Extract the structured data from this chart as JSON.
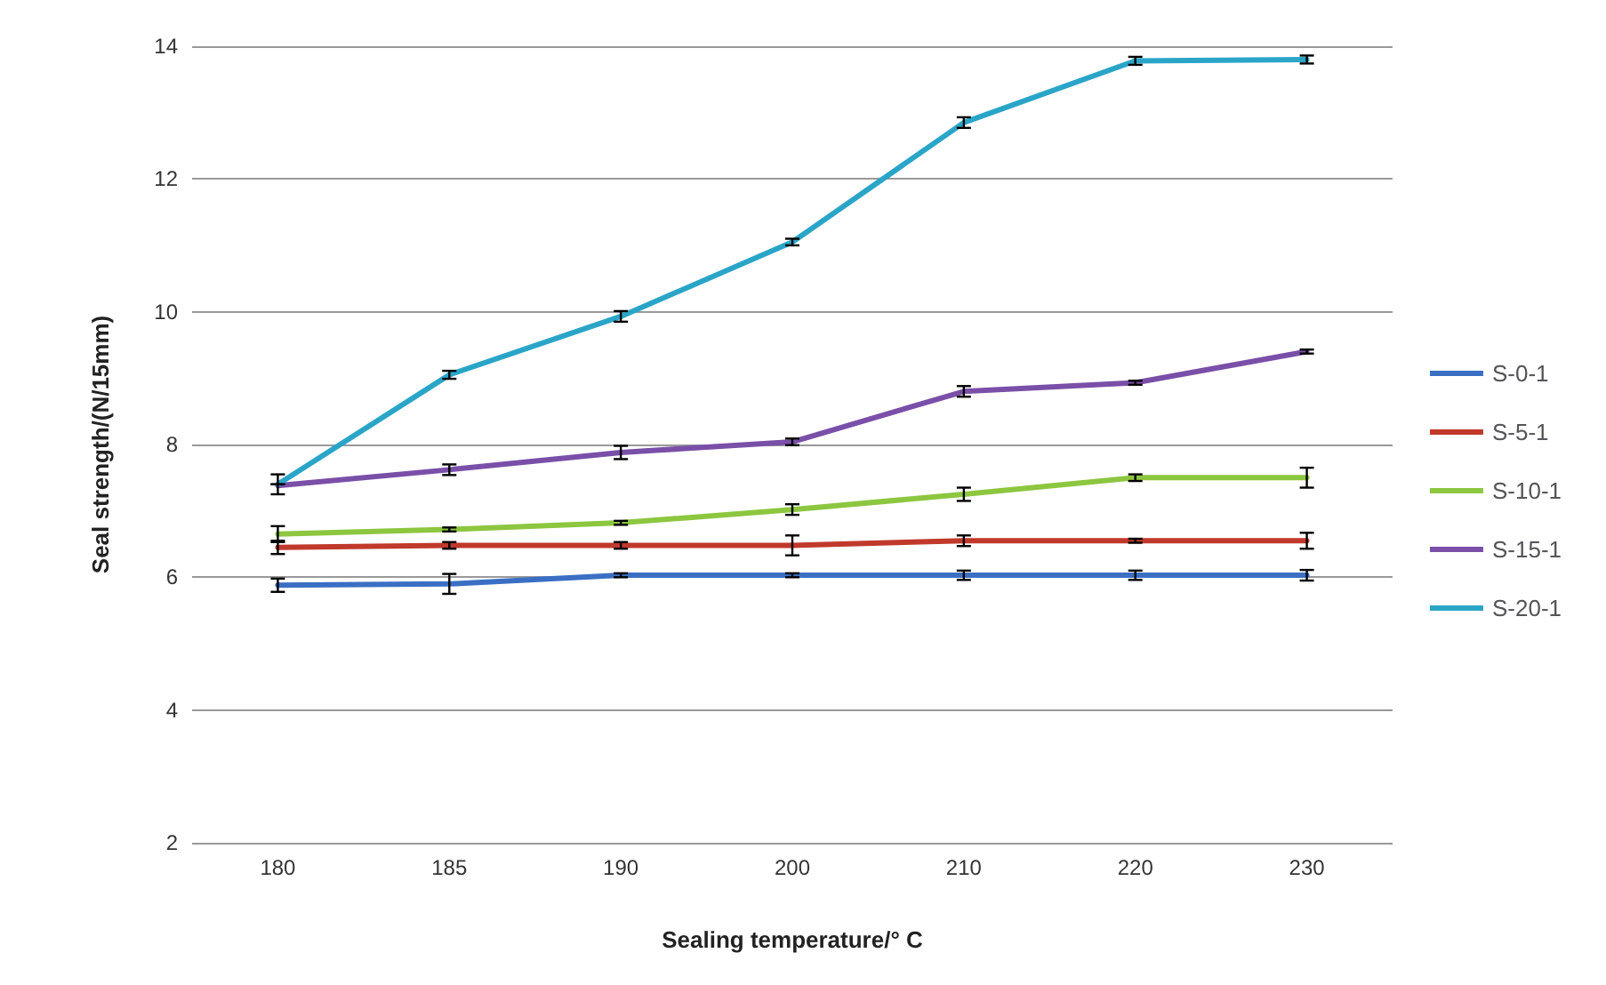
{
  "chart_data": {
    "type": "line",
    "xlabel": "Sealing temperature/° C",
    "ylabel": "Seal strength/(N/15mm)",
    "categories": [
      "180",
      "185",
      "190",
      "200",
      "210",
      "220",
      "230"
    ],
    "ylim": [
      2,
      14
    ],
    "yticks": [
      2,
      4,
      6,
      8,
      10,
      12,
      14
    ],
    "grid": "y",
    "legend": "right",
    "marker": "none",
    "line_style": "solid",
    "series": [
      {
        "name": "S-0-1",
        "color": "#3a6fc4",
        "values": [
          5.88,
          5.9,
          6.03,
          6.03,
          6.03,
          6.03,
          6.03
        ],
        "errors": [
          0.1,
          0.15,
          0.03,
          0.03,
          0.07,
          0.07,
          0.08
        ]
      },
      {
        "name": "S-5-1",
        "color": "#c0392b",
        "values": [
          6.45,
          6.48,
          6.48,
          6.48,
          6.55,
          6.55,
          6.55
        ],
        "errors": [
          0.1,
          0.05,
          0.05,
          0.15,
          0.08,
          0.03,
          0.12
        ]
      },
      {
        "name": "S-10-1",
        "color": "#8dc63f",
        "values": [
          6.65,
          6.72,
          6.82,
          7.02,
          7.25,
          7.5,
          7.5
        ],
        "errors": [
          0.12,
          0.03,
          0.03,
          0.08,
          0.1,
          0.05,
          0.15
        ]
      },
      {
        "name": "S-15-1",
        "color": "#7a4fa8",
        "values": [
          7.38,
          7.62,
          7.88,
          8.04,
          8.8,
          8.93,
          9.4
        ],
        "errors": [
          [
            7.25,
            7.55
          ],
          0.08,
          0.1,
          0.05,
          0.08,
          0.03,
          0.03
        ]
      },
      {
        "name": "S-20-1",
        "color": "#2aa5c8",
        "values": [
          7.4,
          9.05,
          9.93,
          11.05,
          12.85,
          13.78,
          13.8
        ],
        "errors": [
          null,
          0.06,
          0.08,
          0.05,
          0.08,
          0.06,
          0.06
        ]
      }
    ]
  }
}
